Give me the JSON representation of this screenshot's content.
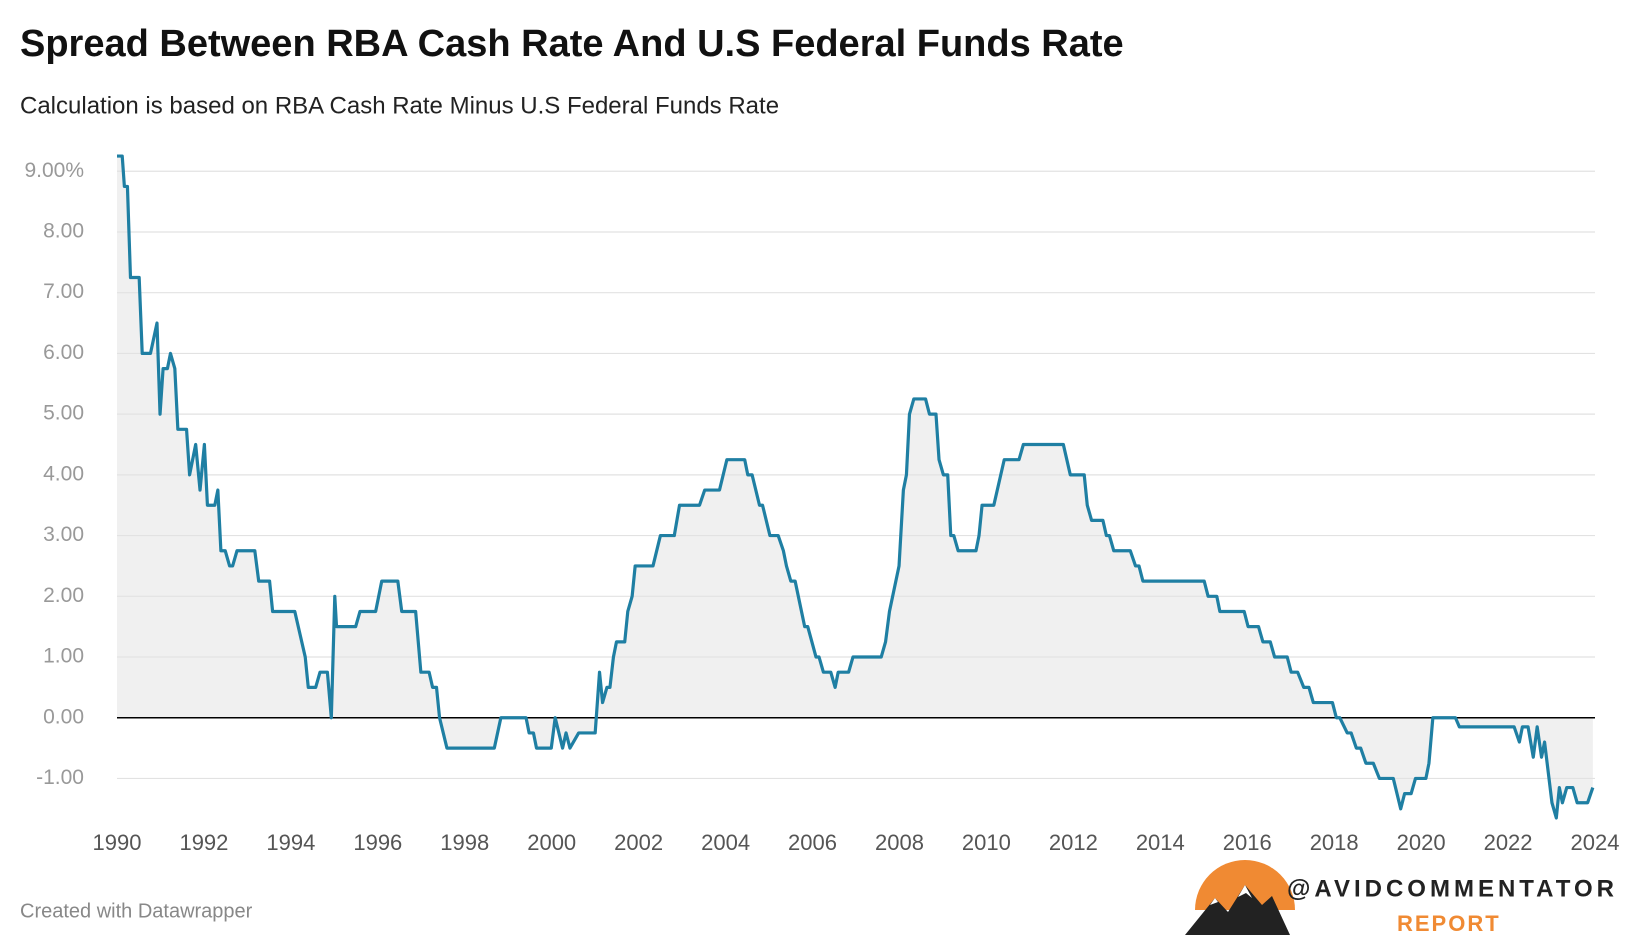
{
  "chart_data": {
    "type": "line",
    "title": "Spread Between RBA Cash Rate And U.S Federal Funds Rate",
    "subtitle": "Calculation is based on RBA Cash Rate Minus U.S Federal Funds Rate",
    "credit": "Created with Datawrapper",
    "brand": "@AVIDCOMMENTATOR",
    "brand_sub": "REPORT",
    "color": "#1f7fa3",
    "area_color": "#f0f0f0",
    "grid": true,
    "xlim": [
      1990,
      2024
    ],
    "xticks": [
      1990,
      1992,
      1994,
      1996,
      1998,
      2000,
      2002,
      2004,
      2006,
      2008,
      2010,
      2012,
      2014,
      2016,
      2018,
      2020,
      2022,
      2024
    ],
    "ylim": [
      -1.75,
      9.35
    ],
    "yticks": [
      {
        "value": 9,
        "label": "9.00%"
      },
      {
        "value": 8,
        "label": "8.00"
      },
      {
        "value": 7,
        "label": "7.00"
      },
      {
        "value": 6,
        "label": "6.00"
      },
      {
        "value": 5,
        "label": "5.00"
      },
      {
        "value": 4,
        "label": "4.00"
      },
      {
        "value": 3,
        "label": "3.00"
      },
      {
        "value": 2,
        "label": "2.00"
      },
      {
        "value": 1,
        "label": "1.00"
      },
      {
        "value": 0,
        "label": "0.00"
      },
      {
        "value": -1,
        "label": "-1.00"
      }
    ],
    "x": [
      1990.0,
      1990.12,
      1990.17,
      1990.24,
      1990.31,
      1990.51,
      1990.58,
      1990.77,
      1990.92,
      1990.99,
      1991.06,
      1991.16,
      1991.23,
      1991.33,
      1991.4,
      1991.6,
      1991.67,
      1991.81,
      1991.91,
      1992.01,
      1992.08,
      1992.25,
      1992.32,
      1992.39,
      1992.49,
      1992.59,
      1992.66,
      1992.76,
      1993.17,
      1993.26,
      1993.51,
      1993.58,
      1994.09,
      1994.33,
      1994.4,
      1994.57,
      1994.67,
      1994.84,
      1994.93,
      1995.01,
      1995.05,
      1995.49,
      1995.59,
      1995.95,
      1996.09,
      1996.46,
      1996.55,
      1996.87,
      1996.99,
      1997.18,
      1997.26,
      1997.35,
      1997.42,
      1997.59,
      1998.68,
      1998.83,
      1999.41,
      1999.48,
      1999.58,
      1999.65,
      1999.99,
      2000.08,
      2000.25,
      2000.33,
      2000.42,
      2000.62,
      2001.0,
      2001.1,
      2001.17,
      2001.27,
      2001.34,
      2001.42,
      2001.49,
      2001.68,
      2001.75,
      2001.85,
      2001.92,
      2002.33,
      2002.5,
      2002.82,
      2002.94,
      2003.4,
      2003.52,
      2003.86,
      2004.03,
      2004.44,
      2004.51,
      2004.61,
      2004.78,
      2004.85,
      2005.02,
      2005.21,
      2005.33,
      2005.4,
      2005.5,
      2005.6,
      2005.82,
      2005.89,
      2006.08,
      2006.15,
      2006.25,
      2006.42,
      2006.52,
      2006.59,
      2006.83,
      2006.93,
      2007.58,
      2007.68,
      2007.77,
      2007.99,
      2008.09,
      2008.16,
      2008.23,
      2008.33,
      2008.6,
      2008.69,
      2008.84,
      2008.91,
      2009.01,
      2009.11,
      2009.18,
      2009.25,
      2009.35,
      2009.76,
      2009.83,
      2009.9,
      2010.17,
      2010.41,
      2010.75,
      2010.85,
      2011.77,
      2011.93,
      2012.25,
      2012.32,
      2012.42,
      2012.68,
      2012.76,
      2012.83,
      2012.93,
      2013.31,
      2013.43,
      2013.51,
      2013.6,
      2015.01,
      2015.1,
      2015.3,
      2015.37,
      2015.93,
      2016.02,
      2016.26,
      2016.36,
      2016.53,
      2016.63,
      2016.92,
      2017.01,
      2017.16,
      2017.3,
      2017.42,
      2017.52,
      2017.96,
      2018.05,
      2018.13,
      2018.3,
      2018.39,
      2018.51,
      2018.61,
      2018.73,
      2018.9,
      2019.04,
      2019.36,
      2019.53,
      2019.62,
      2019.77,
      2019.87,
      2020.11,
      2020.18,
      2020.27,
      2020.79,
      2020.88,
      2022.14,
      2022.26,
      2022.33,
      2022.46,
      2022.58,
      2022.67,
      2022.77,
      2022.84,
      2023.01,
      2023.11,
      2023.18,
      2023.25,
      2023.35,
      2023.49,
      2023.59,
      2023.83,
      2023.95
    ],
    "values": [
      9.25,
      9.25,
      8.75,
      8.75,
      7.25,
      7.25,
      6.0,
      6.0,
      6.5,
      5.0,
      5.75,
      5.75,
      6.0,
      5.75,
      4.75,
      4.75,
      4.0,
      4.5,
      3.75,
      4.5,
      3.5,
      3.5,
      3.75,
      2.75,
      2.75,
      2.5,
      2.5,
      2.75,
      2.75,
      2.25,
      2.25,
      1.75,
      1.75,
      1.0,
      0.5,
      0.5,
      0.75,
      0.75,
      0.0,
      2.0,
      1.5,
      1.5,
      1.75,
      1.75,
      2.25,
      2.25,
      1.75,
      1.75,
      0.75,
      0.75,
      0.5,
      0.5,
      0.0,
      -0.5,
      -0.5,
      0.0,
      0.0,
      -0.25,
      -0.25,
      -0.5,
      -0.5,
      0.0,
      -0.5,
      -0.25,
      -0.5,
      -0.25,
      -0.25,
      0.75,
      0.25,
      0.5,
      0.5,
      1.0,
      1.25,
      1.25,
      1.75,
      2.0,
      2.5,
      2.5,
      3.0,
      3.0,
      3.5,
      3.5,
      3.75,
      3.75,
      4.25,
      4.25,
      4.0,
      4.0,
      3.5,
      3.5,
      3.0,
      3.0,
      2.75,
      2.5,
      2.25,
      2.25,
      1.5,
      1.5,
      1.0,
      1.0,
      0.75,
      0.75,
      0.5,
      0.75,
      0.75,
      1.0,
      1.0,
      1.25,
      1.75,
      2.5,
      3.75,
      4.0,
      5.0,
      5.25,
      5.25,
      5.0,
      5.0,
      4.25,
      4.0,
      4.0,
      3.0,
      3.0,
      2.75,
      2.75,
      3.0,
      3.5,
      3.5,
      4.25,
      4.25,
      4.5,
      4.5,
      4.0,
      4.0,
      3.5,
      3.25,
      3.25,
      3.0,
      3.0,
      2.75,
      2.75,
      2.5,
      2.5,
      2.25,
      2.25,
      2.0,
      2.0,
      1.75,
      1.75,
      1.5,
      1.5,
      1.25,
      1.25,
      1.0,
      1.0,
      0.75,
      0.75,
      0.5,
      0.5,
      0.25,
      0.25,
      0.0,
      0.0,
      -0.25,
      -0.25,
      -0.5,
      -0.5,
      -0.75,
      -0.75,
      -1.0,
      -1.0,
      -1.5,
      -1.25,
      -1.25,
      -1.0,
      -1.0,
      -0.75,
      0.0,
      0.0,
      -0.15,
      -0.15,
      -0.4,
      -0.15,
      -0.15,
      -0.65,
      -0.15,
      -0.65,
      -0.4,
      -1.4,
      -1.65,
      -1.15,
      -1.4,
      -1.15,
      -1.15,
      -1.4,
      -1.4,
      -1.15
    ]
  }
}
